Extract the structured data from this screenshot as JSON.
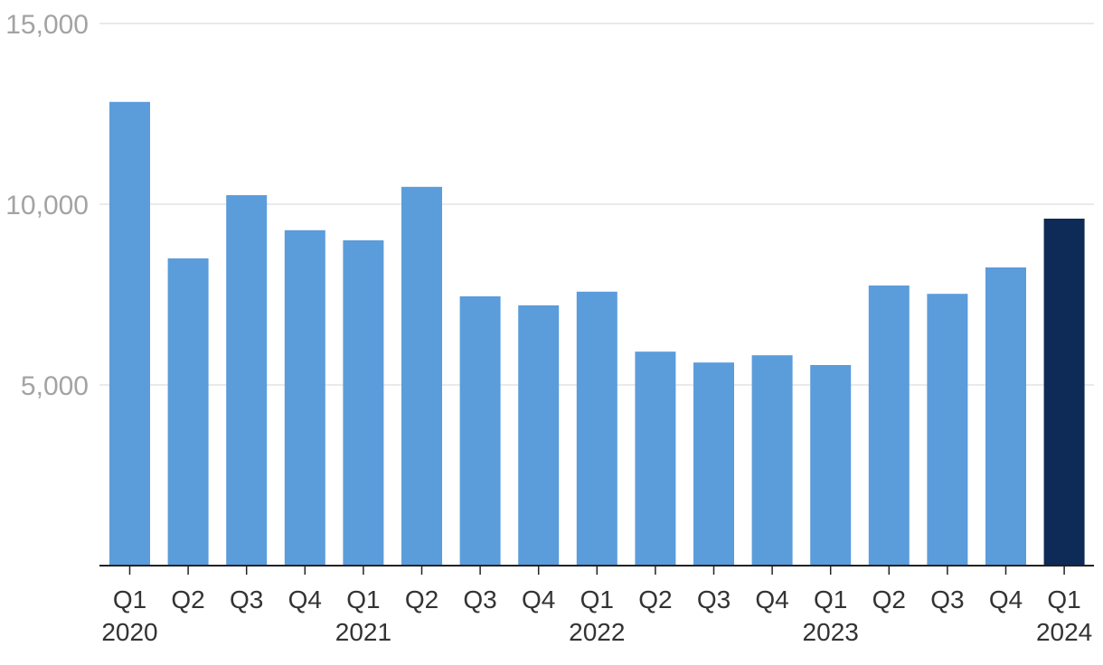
{
  "chart_data": {
    "type": "bar",
    "title": "",
    "xlabel": "",
    "ylabel": "",
    "ylim": [
      0,
      15000
    ],
    "yticks": [
      5000,
      10000,
      15000
    ],
    "ytick_labels": [
      "5,000",
      "10,000",
      "15,000"
    ],
    "grid": true,
    "categories": [
      "Q1 2020",
      "Q2 2020",
      "Q3 2020",
      "Q4 2020",
      "Q1 2021",
      "Q2 2021",
      "Q3 2021",
      "Q4 2021",
      "Q1 2022",
      "Q2 2022",
      "Q3 2022",
      "Q4 2022",
      "Q1 2023",
      "Q2 2023",
      "Q3 2023",
      "Q4 2023",
      "Q1 2024"
    ],
    "quarter_labels": [
      "Q1",
      "Q2",
      "Q3",
      "Q4",
      "Q1",
      "Q2",
      "Q3",
      "Q4",
      "Q1",
      "Q2",
      "Q3",
      "Q4",
      "Q1",
      "Q2",
      "Q3",
      "Q4",
      "Q1"
    ],
    "year_labels": [
      {
        "label": "2020",
        "index": 0
      },
      {
        "label": "2021",
        "index": 4
      },
      {
        "label": "2022",
        "index": 8
      },
      {
        "label": "2023",
        "index": 12
      },
      {
        "label": "2024",
        "index": 16
      }
    ],
    "values": [
      12830,
      8500,
      10250,
      9280,
      9000,
      10480,
      7450,
      7200,
      7580,
      5920,
      5620,
      5820,
      5550,
      7750,
      7520,
      8250,
      9600
    ],
    "bar_color": "#5b9cdb",
    "highlight_color": "#0e2a56",
    "highlight_index": 16
  }
}
